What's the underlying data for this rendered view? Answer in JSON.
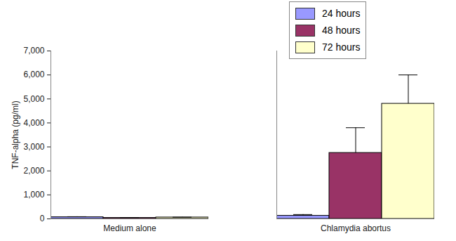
{
  "chart_data": {
    "type": "bar",
    "categories": [
      "Medium alone",
      "Chlamydia abortus"
    ],
    "series": [
      {
        "name": "24 hours",
        "color": "#9999ff",
        "values": [
          70,
          130
        ],
        "errors": [
          20,
          50
        ]
      },
      {
        "name": "48 hours",
        "color": "#993366",
        "values": [
          40,
          2750
        ],
        "errors": [
          10,
          1050
        ]
      },
      {
        "name": "72 hours",
        "color": "#ffffcc",
        "values": [
          60,
          4800
        ],
        "errors": [
          10,
          1200
        ]
      }
    ],
    "y_label": "TNF-alpha (pg/ml)",
    "ylim": [
      0,
      7000
    ],
    "yticks": [
      0,
      1000,
      2000,
      3000,
      4000,
      5000,
      6000,
      7000
    ],
    "grid": false,
    "legend": "top-right"
  }
}
